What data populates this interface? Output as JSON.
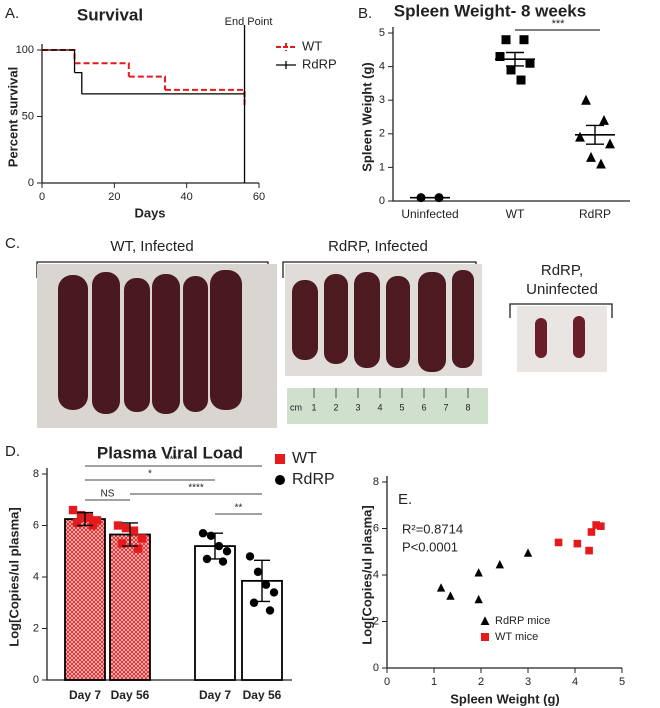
{
  "chart_data": [
    {
      "type": "step",
      "panel": "A.",
      "title": "Survival",
      "xlabel": "Days",
      "ylabel": "Percent survival",
      "xlim": [
        0,
        60
      ],
      "ylim": [
        0,
        100
      ],
      "xticks": [
        0,
        20,
        40,
        60
      ],
      "yticks": [
        0,
        50,
        100
      ],
      "series": [
        {
          "name": "WT",
          "color": "#e41a1c",
          "dashed": true,
          "x": [
            0,
            9,
            24,
            34,
            56
          ],
          "values": [
            100,
            90,
            80,
            70,
            60
          ]
        },
        {
          "name": "RdRP",
          "color": "#000000",
          "dashed": false,
          "x": [
            0,
            9,
            11,
            56
          ],
          "values": [
            100,
            83,
            67,
            67
          ]
        }
      ],
      "annotation": {
        "text": "End Point",
        "x": 56
      }
    },
    {
      "type": "dot",
      "panel": "B.",
      "title": "Spleen Weight- 8 weeks",
      "ylabel": "Spleen Weight (g)",
      "categories": [
        "Uninfected",
        "WT",
        "RdRP"
      ],
      "markers": [
        "circle",
        "square",
        "triangle"
      ],
      "points": [
        [
          0.1,
          0.1
        ],
        [
          4.8,
          4.8,
          4.3,
          4.1,
          3.9,
          3.6
        ],
        [
          3.0,
          2.4,
          1.9,
          1.7,
          1.3,
          1.1
        ]
      ],
      "mean": [
        0.1,
        4.22,
        1.97
      ],
      "sem": [
        0,
        0.2,
        0.28
      ],
      "ylim": [
        0,
        5
      ],
      "yticks": [
        0,
        1,
        2,
        3,
        4,
        5
      ],
      "significance": "***"
    },
    {
      "type": "bar",
      "panel": "D.",
      "title": "Plasma Viral Load",
      "ylabel": "Log[Copies/ul plasma]",
      "categories": [
        "Day 7",
        "Day 56",
        "Day 7",
        "Day 56"
      ],
      "ylim": [
        0,
        8
      ],
      "yticks": [
        0,
        2,
        4,
        6,
        8
      ],
      "series": [
        {
          "name": "WT",
          "color": "#e41a1c",
          "marker": "square",
          "hatch": true,
          "values": [
            6.25,
            5.65,
            null,
            null
          ],
          "errors": [
            0.25,
            0.45,
            null,
            null
          ],
          "points": [
            [
              6.6,
              6.4,
              6.3,
              6.2,
              6.1,
              6.0,
              6.3
            ],
            [
              6.0,
              5.9,
              5.8,
              5.5,
              5.3,
              5.1
            ],
            null,
            null
          ]
        },
        {
          "name": "RdRP",
          "color": "#000000",
          "marker": "circle",
          "hatch": false,
          "values": [
            null,
            null,
            5.2,
            3.85
          ],
          "errors": [
            null,
            null,
            0.5,
            0.8
          ],
          "points": [
            null,
            null,
            [
              5.7,
              5.6,
              5.2,
              5.0,
              4.7,
              4.6
            ],
            [
              4.8,
              4.2,
              3.7,
              3.4,
              3.0,
              2.7
            ]
          ]
        }
      ],
      "significance": [
        "****",
        "*",
        "NS",
        "****",
        "**"
      ]
    },
    {
      "type": "scatter",
      "panel": "E.",
      "xlabel": "Spleen Weight (g)",
      "ylabel": "Log[Copies/ul plasma]",
      "xlim": [
        0,
        5
      ],
      "ylim": [
        0,
        8
      ],
      "xticks": [
        0,
        1,
        2,
        3,
        4,
        5
      ],
      "yticks": [
        0,
        2,
        4,
        6,
        8
      ],
      "annotations": [
        "R²=0.8714",
        "P<0.0001"
      ],
      "series": [
        {
          "name": "RdRP mice",
          "color": "#000000",
          "marker": "triangle",
          "x": [
            1.15,
            1.35,
            1.95,
            1.95,
            2.4,
            3.0
          ],
          "values": [
            3.45,
            3.1,
            4.1,
            2.95,
            4.45,
            4.95
          ]
        },
        {
          "name": "WT mice",
          "color": "#e41a1c",
          "marker": "square",
          "x": [
            3.65,
            4.05,
            4.3,
            4.35,
            4.45,
            4.55
          ],
          "values": [
            5.4,
            5.35,
            5.05,
            5.85,
            6.15,
            6.1
          ]
        }
      ]
    }
  ],
  "photo_panel": {
    "panel": "C.",
    "labels": [
      "WT, Infected",
      "RdRP, Infected",
      "RdRP,",
      "Uninfected"
    ],
    "ruler_unit": "cm",
    "ruler_labels": [
      "1",
      "2",
      "3",
      "4",
      "5",
      "6",
      "7",
      "8"
    ]
  }
}
